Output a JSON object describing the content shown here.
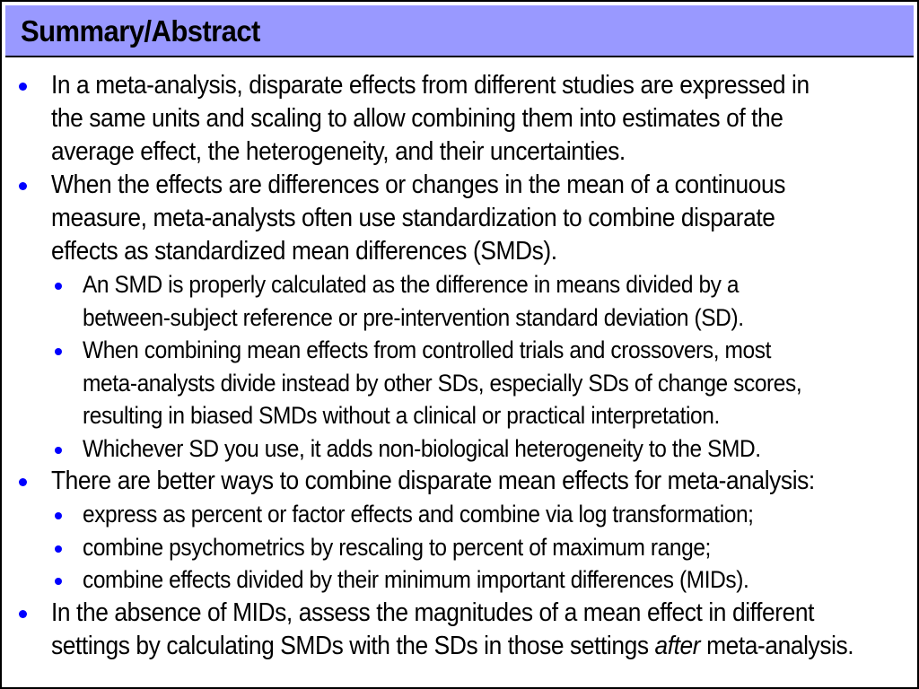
{
  "title": "Summary/Abstract",
  "colors": {
    "title_background": "#9999ff",
    "bullet": "#0000ff",
    "text": "#000000"
  },
  "bullets": [
    {
      "level": 1,
      "lines": [
        "In a meta-analysis, disparate effects from different studies are expressed in",
        "the same units and scaling to allow combining them into estimates of the",
        "average effect, the heterogeneity, and their uncertainties."
      ]
    },
    {
      "level": 1,
      "lines": [
        "When the effects are differences or changes in the mean of a continuous",
        "measure, meta-analysts often use standardization to combine disparate",
        "effects as standardized mean differences (SMDs)."
      ]
    },
    {
      "level": 2,
      "lines": [
        "An SMD is properly calculated as the difference in means divided by a",
        "between-subject reference or pre-intervention standard deviation (SD)."
      ]
    },
    {
      "level": 2,
      "lines": [
        "When combining mean effects from controlled trials and crossovers, most",
        "meta-analysts divide instead by other SDs, especially SDs of change scores,",
        "resulting in biased SMDs without a clinical or practical interpretation."
      ]
    },
    {
      "level": 2,
      "lines": [
        "Whichever SD you use, it adds non-biological heterogeneity to the SMD."
      ]
    },
    {
      "level": 1,
      "lines": [
        "There are better ways to combine disparate mean effects for meta-analysis:"
      ]
    },
    {
      "level": 2,
      "lines": [
        "express as percent or factor effects and combine via log transformation;"
      ]
    },
    {
      "level": 2,
      "lines": [
        "combine psychometrics by rescaling to percent of maximum range;"
      ]
    },
    {
      "level": 2,
      "lines": [
        "combine effects divided by their minimum important differences (MIDs)."
      ]
    },
    {
      "level": 1,
      "lines": [
        "In the absence of MIDs, assess the magnitudes of a mean effect in different"
      ],
      "last_line": {
        "before": "settings by calculating SMDs with the SDs in those settings ",
        "emphasis": "after",
        "after": " meta-analysis."
      }
    }
  ]
}
